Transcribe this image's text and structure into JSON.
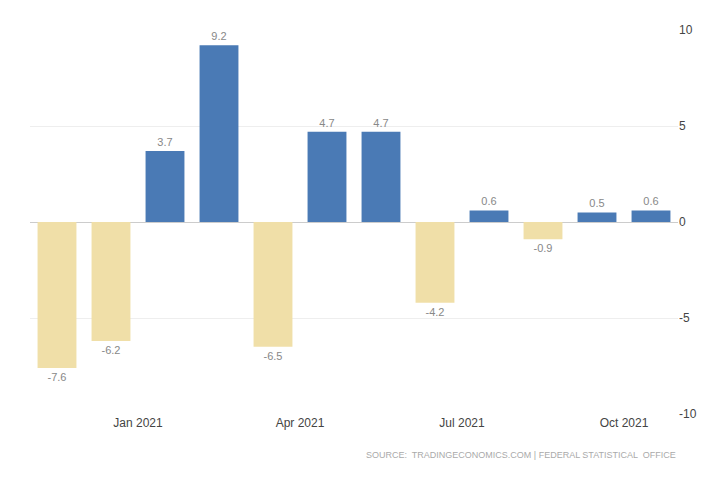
{
  "chart_data": {
    "type": "bar",
    "categories": [
      null,
      null,
      null,
      null,
      null,
      null,
      null,
      null,
      null,
      null,
      null,
      null
    ],
    "values": [
      -7.6,
      -6.2,
      3.7,
      9.2,
      -6.5,
      4.7,
      4.7,
      -4.2,
      0.6,
      -0.9,
      0.5,
      0.6
    ],
    "colors": [
      "#f0dfa8",
      "#f0dfa8",
      "#4a7ab5",
      "#4a7ab5",
      "#f0dfa8",
      "#4a7ab5",
      "#4a7ab5",
      "#f0dfa8",
      "#4a7ab5",
      "#f0dfa8",
      "#4a7ab5",
      "#4a7ab5"
    ],
    "xticks": [
      {
        "value": 1.5,
        "label": "Jan 2021"
      },
      {
        "value": 4.5,
        "label": "Apr 2021"
      },
      {
        "value": 7.5,
        "label": "Jul 2021"
      },
      {
        "value": 10.5,
        "label": "Oct 2021"
      }
    ],
    "ylim": [
      -10,
      10
    ],
    "yticks": [
      -10,
      -5,
      0,
      5,
      10
    ],
    "grid": true,
    "data_labels": true,
    "annotations": [
      "SOURCE:  TRADINGECONOMICS.COM | FEDERAL STATISTICAL  OFFICE"
    ]
  }
}
